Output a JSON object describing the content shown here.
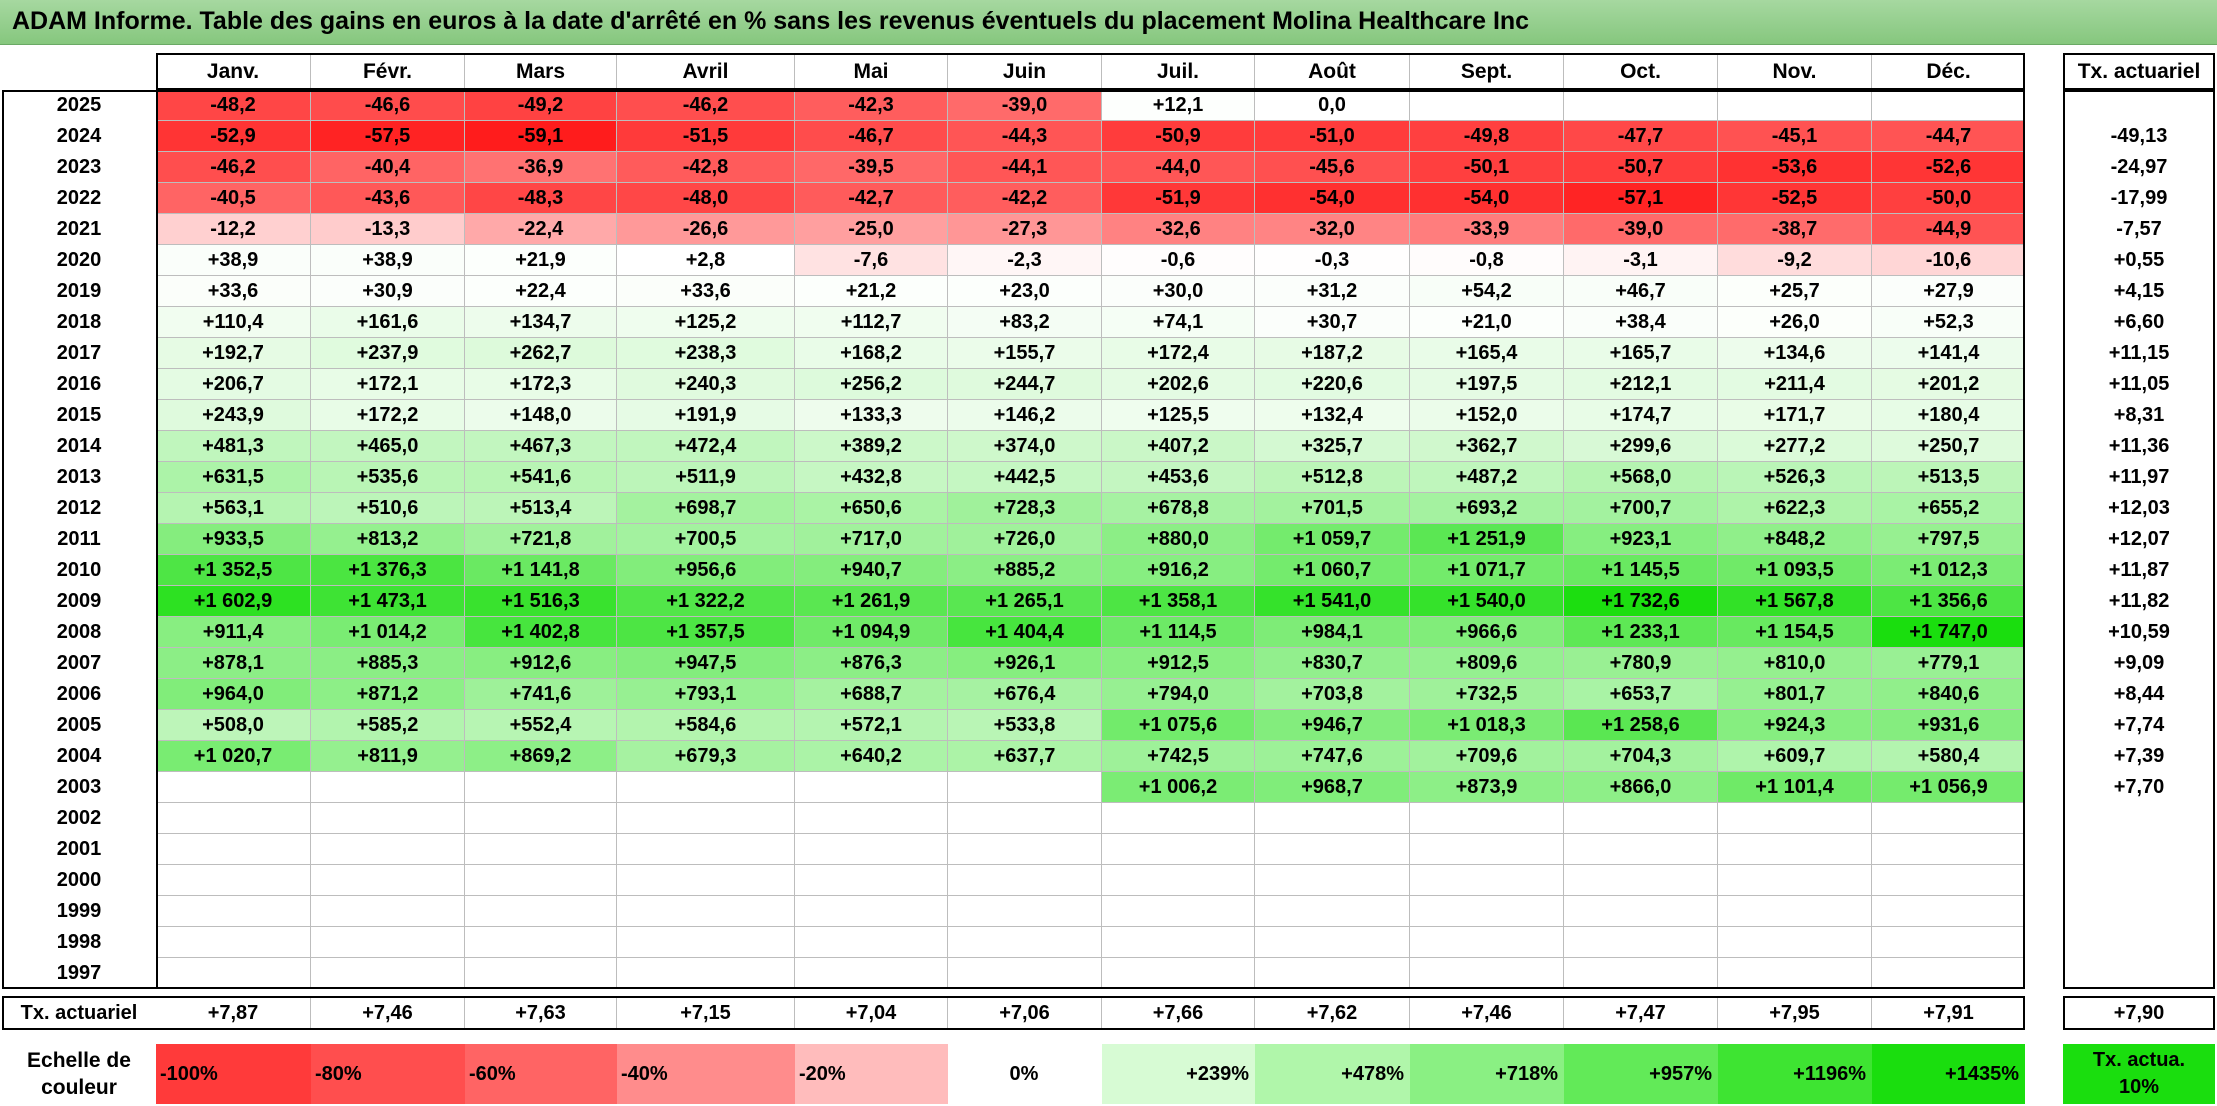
{
  "title": "ADAM Informe. Table des gains en euros à la date d'arrêté en % sans les revenus éventuels du placement Molina Healthcare Inc",
  "chart_data": {
    "type": "table",
    "months": [
      "Janv.",
      "Févr.",
      "Mars",
      "Avril",
      "Mai",
      "Juin",
      "Juil.",
      "Août",
      "Sept.",
      "Oct.",
      "Nov.",
      "Déc."
    ],
    "annual_header": "Tx. actuariel",
    "footer_label": "Tx. actuariel",
    "rows": [
      {
        "year": "2025",
        "values": [
          "-48,2",
          "-46,6",
          "-49,2",
          "-46,2",
          "-42,3",
          "-39,0",
          "+12,1",
          "0,0",
          "",
          "",
          "",
          ""
        ],
        "rate": ""
      },
      {
        "year": "2024",
        "values": [
          "-52,9",
          "-57,5",
          "-59,1",
          "-51,5",
          "-46,7",
          "-44,3",
          "-50,9",
          "-51,0",
          "-49,8",
          "-47,7",
          "-45,1",
          "-44,7"
        ],
        "rate": "-49,13"
      },
      {
        "year": "2023",
        "values": [
          "-46,2",
          "-40,4",
          "-36,9",
          "-42,8",
          "-39,5",
          "-44,1",
          "-44,0",
          "-45,6",
          "-50,1",
          "-50,7",
          "-53,6",
          "-52,6"
        ],
        "rate": "-24,97"
      },
      {
        "year": "2022",
        "values": [
          "-40,5",
          "-43,6",
          "-48,3",
          "-48,0",
          "-42,7",
          "-42,2",
          "-51,9",
          "-54,0",
          "-54,0",
          "-57,1",
          "-52,5",
          "-50,0"
        ],
        "rate": "-17,99"
      },
      {
        "year": "2021",
        "values": [
          "-12,2",
          "-13,3",
          "-22,4",
          "-26,6",
          "-25,0",
          "-27,3",
          "-32,6",
          "-32,0",
          "-33,9",
          "-39,0",
          "-38,7",
          "-44,9"
        ],
        "rate": "-7,57"
      },
      {
        "year": "2020",
        "values": [
          "+38,9",
          "+38,9",
          "+21,9",
          "+2,8",
          "-7,6",
          "-2,3",
          "-0,6",
          "-0,3",
          "-0,8",
          "-3,1",
          "-9,2",
          "-10,6"
        ],
        "rate": "+0,55"
      },
      {
        "year": "2019",
        "values": [
          "+33,6",
          "+30,9",
          "+22,4",
          "+33,6",
          "+21,2",
          "+23,0",
          "+30,0",
          "+31,2",
          "+54,2",
          "+46,7",
          "+25,7",
          "+27,9"
        ],
        "rate": "+4,15"
      },
      {
        "year": "2018",
        "values": [
          "+110,4",
          "+161,6",
          "+134,7",
          "+125,2",
          "+112,7",
          "+83,2",
          "+74,1",
          "+30,7",
          "+21,0",
          "+38,4",
          "+26,0",
          "+52,3"
        ],
        "rate": "+6,60"
      },
      {
        "year": "2017",
        "values": [
          "+192,7",
          "+237,9",
          "+262,7",
          "+238,3",
          "+168,2",
          "+155,7",
          "+172,4",
          "+187,2",
          "+165,4",
          "+165,7",
          "+134,6",
          "+141,4"
        ],
        "rate": "+11,15"
      },
      {
        "year": "2016",
        "values": [
          "+206,7",
          "+172,1",
          "+172,3",
          "+240,3",
          "+256,2",
          "+244,7",
          "+202,6",
          "+220,6",
          "+197,5",
          "+212,1",
          "+211,4",
          "+201,2"
        ],
        "rate": "+11,05"
      },
      {
        "year": "2015",
        "values": [
          "+243,9",
          "+172,2",
          "+148,0",
          "+191,9",
          "+133,3",
          "+146,2",
          "+125,5",
          "+132,4",
          "+152,0",
          "+174,7",
          "+171,7",
          "+180,4"
        ],
        "rate": "+8,31"
      },
      {
        "year": "2014",
        "values": [
          "+481,3",
          "+465,0",
          "+467,3",
          "+472,4",
          "+389,2",
          "+374,0",
          "+407,2",
          "+325,7",
          "+362,7",
          "+299,6",
          "+277,2",
          "+250,7"
        ],
        "rate": "+11,36"
      },
      {
        "year": "2013",
        "values": [
          "+631,5",
          "+535,6",
          "+541,6",
          "+511,9",
          "+432,8",
          "+442,5",
          "+453,6",
          "+512,8",
          "+487,2",
          "+568,0",
          "+526,3",
          "+513,5"
        ],
        "rate": "+11,97"
      },
      {
        "year": "2012",
        "values": [
          "+563,1",
          "+510,6",
          "+513,4",
          "+698,7",
          "+650,6",
          "+728,3",
          "+678,8",
          "+701,5",
          "+693,2",
          "+700,7",
          "+622,3",
          "+655,2"
        ],
        "rate": "+12,03"
      },
      {
        "year": "2011",
        "values": [
          "+933,5",
          "+813,2",
          "+721,8",
          "+700,5",
          "+717,0",
          "+726,0",
          "+880,0",
          "+1 059,7",
          "+1 251,9",
          "+923,1",
          "+848,2",
          "+797,5"
        ],
        "rate": "+12,07"
      },
      {
        "year": "2010",
        "values": [
          "+1 352,5",
          "+1 376,3",
          "+1 141,8",
          "+956,6",
          "+940,7",
          "+885,2",
          "+916,2",
          "+1 060,7",
          "+1 071,7",
          "+1 145,5",
          "+1 093,5",
          "+1 012,3"
        ],
        "rate": "+11,87"
      },
      {
        "year": "2009",
        "values": [
          "+1 602,9",
          "+1 473,1",
          "+1 516,3",
          "+1 322,2",
          "+1 261,9",
          "+1 265,1",
          "+1 358,1",
          "+1 541,0",
          "+1 540,0",
          "+1 732,6",
          "+1 567,8",
          "+1 356,6"
        ],
        "rate": "+11,82"
      },
      {
        "year": "2008",
        "values": [
          "+911,4",
          "+1 014,2",
          "+1 402,8",
          "+1 357,5",
          "+1 094,9",
          "+1 404,4",
          "+1 114,5",
          "+984,1",
          "+966,6",
          "+1 233,1",
          "+1 154,5",
          "+1 747,0"
        ],
        "rate": "+10,59"
      },
      {
        "year": "2007",
        "values": [
          "+878,1",
          "+885,3",
          "+912,6",
          "+947,5",
          "+876,3",
          "+926,1",
          "+912,5",
          "+830,7",
          "+809,6",
          "+780,9",
          "+810,0",
          "+779,1"
        ],
        "rate": "+9,09"
      },
      {
        "year": "2006",
        "values": [
          "+964,0",
          "+871,2",
          "+741,6",
          "+793,1",
          "+688,7",
          "+676,4",
          "+794,0",
          "+703,8",
          "+732,5",
          "+653,7",
          "+801,7",
          "+840,6"
        ],
        "rate": "+8,44"
      },
      {
        "year": "2005",
        "values": [
          "+508,0",
          "+585,2",
          "+552,4",
          "+584,6",
          "+572,1",
          "+533,8",
          "+1 075,6",
          "+946,7",
          "+1 018,3",
          "+1 258,6",
          "+924,3",
          "+931,6"
        ],
        "rate": "+7,74"
      },
      {
        "year": "2004",
        "values": [
          "+1 020,7",
          "+811,9",
          "+869,2",
          "+679,3",
          "+640,2",
          "+637,7",
          "+742,5",
          "+747,6",
          "+709,6",
          "+704,3",
          "+609,7",
          "+580,4"
        ],
        "rate": "+7,39"
      },
      {
        "year": "2003",
        "values": [
          "",
          "",
          "",
          "",
          "",
          "",
          "+1 006,2",
          "+968,7",
          "+873,9",
          "+866,0",
          "+1 101,4",
          "+1 056,9"
        ],
        "rate": "+7,70"
      },
      {
        "year": "2002",
        "values": [
          "",
          "",
          "",
          "",
          "",
          "",
          "",
          "",
          "",
          "",
          "",
          ""
        ],
        "rate": ""
      },
      {
        "year": "2001",
        "values": [
          "",
          "",
          "",
          "",
          "",
          "",
          "",
          "",
          "",
          "",
          "",
          ""
        ],
        "rate": ""
      },
      {
        "year": "2000",
        "values": [
          "",
          "",
          "",
          "",
          "",
          "",
          "",
          "",
          "",
          "",
          "",
          ""
        ],
        "rate": ""
      },
      {
        "year": "1999",
        "values": [
          "",
          "",
          "",
          "",
          "",
          "",
          "",
          "",
          "",
          "",
          "",
          ""
        ],
        "rate": ""
      },
      {
        "year": "1998",
        "values": [
          "",
          "",
          "",
          "",
          "",
          "",
          "",
          "",
          "",
          "",
          "",
          ""
        ],
        "rate": ""
      },
      {
        "year": "1997",
        "values": [
          "",
          "",
          "",
          "",
          "",
          "",
          "",
          "",
          "",
          "",
          "",
          ""
        ],
        "rate": ""
      }
    ],
    "footer_values": [
      "+7,87",
      "+7,46",
      "+7,63",
      "+7,15",
      "+7,04",
      "+7,06",
      "+7,66",
      "+7,62",
      "+7,46",
      "+7,47",
      "+7,95",
      "+7,91"
    ],
    "footer_total": "+7,90",
    "scale_label": "Echelle de couleur",
    "scale": [
      {
        "label": "-100%",
        "color": "#ff3a3a",
        "align": "left"
      },
      {
        "label": "-80%",
        "color": "#ff4e4e",
        "align": "left"
      },
      {
        "label": "-60%",
        "color": "#ff6464",
        "align": "left"
      },
      {
        "label": "-40%",
        "color": "#ff8c8c",
        "align": "left"
      },
      {
        "label": "-20%",
        "color": "#ffbcbc",
        "align": "left"
      },
      {
        "label": "0%",
        "color": "#ffffff",
        "align": "center"
      },
      {
        "label": "+239%",
        "color": "#d7fbd4",
        "align": "right"
      },
      {
        "label": "+478%",
        "color": "#b0f6aa",
        "align": "right"
      },
      {
        "label": "+718%",
        "color": "#8af083",
        "align": "right"
      },
      {
        "label": "+957%",
        "color": "#62ea58",
        "align": "right"
      },
      {
        "label": "+1196%",
        "color": "#3ee432",
        "align": "right"
      },
      {
        "label": "+1435%",
        "color": "#1ade0e",
        "align": "right"
      }
    ],
    "scale_total": "Tx. actua. 10%",
    "scale_total_color": "#1ade0e",
    "highlight_colors": {
      "negative_max": "#ff1a1a",
      "positive_max": "#1ade0e"
    }
  }
}
